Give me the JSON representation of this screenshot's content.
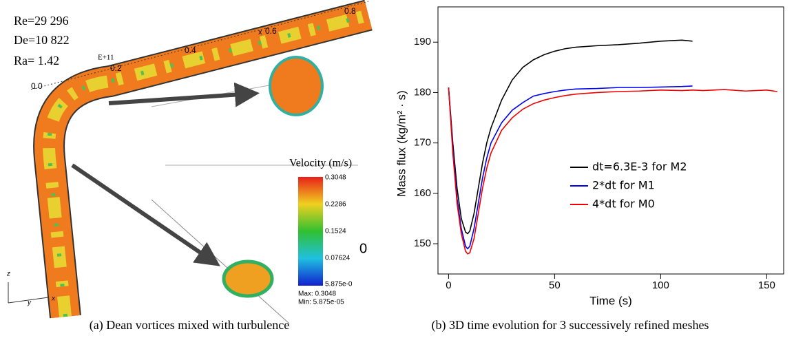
{
  "figure": {
    "left_panel": {
      "params": [
        "Re=29 296",
        "De=10 822",
        "Ra= 1.42"
      ],
      "ra_exponent": "E+11",
      "pipe_ticks": [
        "0.0",
        "0.2",
        "0.4",
        "0.6",
        "0.8"
      ],
      "pipe_axis_label": "x",
      "colorbar_title": "Velocity (m/s)",
      "colorbar_labels": [
        "0.3048",
        "0.2286",
        "0.1524",
        "0.07624",
        "5.875e-0"
      ],
      "max_label": "Max: 0.3048",
      "min_label": "Min: 5.875e-05",
      "edge_label": "0",
      "axes_labels": [
        "z",
        "y",
        "x"
      ]
    },
    "captions": [
      "(a) Dean vortices mixed with turbulence",
      "(b) 3D time evolution for 3 successively refined meshes"
    ]
  },
  "chart_data": {
    "type": "line",
    "xlabel": "Time (s)",
    "ylabel": "Mass flux",
    "ylabel_units": "(kg/m² · s)",
    "xlim": [
      -5,
      158
    ],
    "ylim": [
      144,
      197
    ],
    "xticks": [
      0,
      50,
      100,
      150
    ],
    "yticks": [
      150,
      160,
      170,
      180,
      190
    ],
    "legend": "center-right",
    "series": [
      {
        "name": "dt=6.3E-3 for M2",
        "color": "#000000",
        "x": [
          0,
          2,
          4,
          6,
          8,
          9,
          10,
          12,
          14,
          16,
          18,
          20,
          25,
          30,
          35,
          40,
          45,
          50,
          55,
          60,
          70,
          80,
          90,
          100,
          110,
          115
        ],
        "values": [
          181,
          170,
          161,
          155,
          152.3,
          152,
          152.5,
          156,
          161,
          166,
          170,
          173,
          178.5,
          182.5,
          185,
          186.5,
          187.5,
          188.2,
          188.7,
          189,
          189.3,
          189.5,
          189.8,
          190.2,
          190.4,
          190.2
        ]
      },
      {
        "name": "2*dt for M1",
        "color": "#0000ee",
        "x": [
          0,
          2,
          4,
          6,
          8,
          9,
          10,
          12,
          14,
          16,
          18,
          20,
          25,
          30,
          35,
          40,
          45,
          50,
          55,
          60,
          70,
          80,
          90,
          100,
          110,
          115
        ],
        "values": [
          181,
          169,
          159,
          153,
          149.5,
          149,
          149.5,
          153,
          158,
          163,
          167,
          170,
          174,
          176.5,
          178,
          179.3,
          179.8,
          180.2,
          180.5,
          180.7,
          180.8,
          181,
          181,
          181.1,
          181.2,
          181.3
        ]
      },
      {
        "name": "4*dt for M0",
        "color": "#ee0000",
        "x": [
          0,
          2,
          4,
          6,
          8,
          9,
          10,
          12,
          14,
          16,
          18,
          20,
          25,
          30,
          35,
          40,
          45,
          50,
          55,
          60,
          70,
          80,
          90,
          100,
          110,
          115,
          120,
          130,
          140,
          150,
          155
        ],
        "values": [
          181,
          168,
          158,
          152,
          148.5,
          148,
          148.2,
          151,
          156,
          161,
          165,
          168,
          172.5,
          175,
          176.7,
          177.8,
          178.5,
          179,
          179.4,
          179.7,
          180,
          180.2,
          180.3,
          180.5,
          180.4,
          180.5,
          180.4,
          180.6,
          180.3,
          180.5,
          180.2
        ]
      }
    ]
  }
}
